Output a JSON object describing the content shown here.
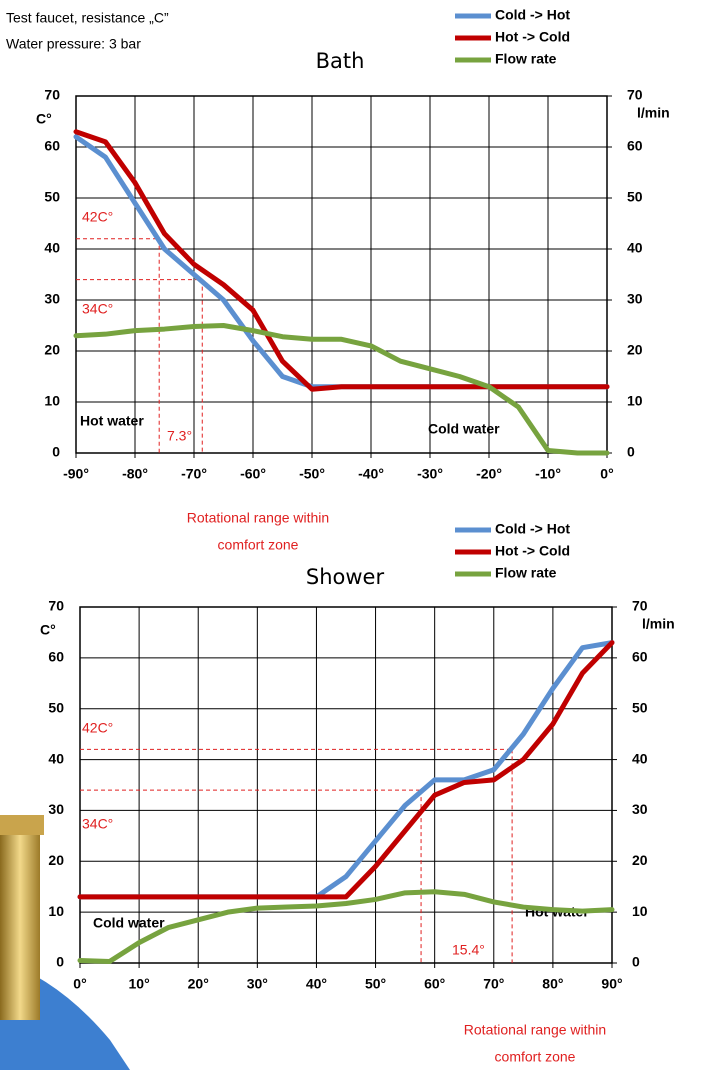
{
  "header": {
    "lines": [
      "Test faucet, resistance „C”",
      "Water pressure: 3 bar"
    ]
  },
  "chart_data": [
    {
      "type": "line",
      "title": "Bath",
      "y_label": "C°",
      "y2_label": "l/min",
      "x": [
        -90,
        -85,
        -80,
        -75,
        -70,
        -65,
        -60,
        -55,
        -50,
        -45,
        -40,
        -35,
        -30,
        -25,
        -20,
        -15,
        -10,
        -5,
        0
      ],
      "series": [
        {
          "name": "Cold -> Hot",
          "color": "#5b8fd0",
          "values": [
            62,
            58,
            49,
            40,
            35,
            30,
            22,
            15,
            13,
            13,
            13,
            13,
            13,
            13,
            13,
            13,
            13,
            13,
            13
          ]
        },
        {
          "name": "Hot -> Cold",
          "color": "#c00000",
          "values": [
            63,
            61,
            53,
            43,
            37,
            33,
            28,
            18,
            12.5,
            13,
            13,
            13,
            13,
            13,
            13,
            13,
            13,
            13,
            13
          ]
        },
        {
          "name": "Flow rate",
          "color": "#77a33f",
          "axis": "y2",
          "values": [
            23,
            23.3,
            24,
            24.3,
            24.8,
            25,
            24,
            22.8,
            22.3,
            22.3,
            21,
            18,
            16.5,
            15,
            13,
            9,
            0.5,
            0,
            0
          ]
        }
      ],
      "xlim": [
        -90,
        0
      ],
      "xticks": [
        {
          "value": -90,
          "label": "-90°"
        },
        {
          "value": -80,
          "label": "-80°"
        },
        {
          "value": -70,
          "label": "-70°"
        },
        {
          "value": -60,
          "label": "-60°"
        },
        {
          "value": -50,
          "label": "-50°"
        },
        {
          "value": -40,
          "label": "-40°"
        },
        {
          "value": -30,
          "label": "-30°"
        },
        {
          "value": -20,
          "label": "-20°"
        },
        {
          "value": -10,
          "label": "-10°"
        },
        {
          "value": 0,
          "label": "0°"
        }
      ],
      "ylim": [
        0,
        70
      ],
      "yticks": [
        0,
        10,
        20,
        30,
        40,
        50,
        60,
        70
      ],
      "y2lim": [
        0,
        70
      ],
      "y2ticks": [
        0,
        10,
        20,
        30,
        40,
        50,
        60,
        70
      ],
      "grid": true,
      "reference_lines": [
        {
          "label": "42C°",
          "y": 42,
          "x": -75.9
        },
        {
          "label": "34C°",
          "y": 34,
          "x": -68.6
        }
      ],
      "range_label": "7.3°",
      "annotations": [
        "Hot water",
        "Cold water"
      ],
      "range_note": [
        "Rotational range within",
        "comfort zone"
      ]
    },
    {
      "type": "line",
      "title": "Shower",
      "y_label": "C°",
      "y2_label": "l/min",
      "x": [
        0,
        5,
        10,
        15,
        20,
        25,
        30,
        35,
        40,
        45,
        50,
        55,
        60,
        65,
        70,
        75,
        80,
        85,
        90
      ],
      "series": [
        {
          "name": "Cold -> Hot",
          "color": "#5b8fd0",
          "values": [
            13,
            13,
            13,
            13,
            13,
            13,
            13,
            13,
            13,
            17,
            24,
            31,
            36,
            36,
            38,
            45,
            54,
            62,
            63
          ]
        },
        {
          "name": "Hot -> Cold",
          "color": "#c00000",
          "values": [
            13,
            13,
            13,
            13,
            13,
            13,
            13,
            13,
            13,
            13,
            19,
            26,
            33,
            35.5,
            36,
            40,
            47,
            57,
            63
          ]
        },
        {
          "name": "Flow rate",
          "color": "#77a33f",
          "axis": "y2",
          "values": [
            0.5,
            0.3,
            4,
            7,
            8.5,
            10,
            10.8,
            11,
            11.2,
            11.7,
            12.5,
            13.8,
            14,
            13.5,
            12,
            11,
            10.5,
            10.2,
            10.5
          ]
        }
      ],
      "xlim": [
        0,
        90
      ],
      "xticks": [
        {
          "value": 0,
          "label": "0°"
        },
        {
          "value": 10,
          "label": "10°"
        },
        {
          "value": 20,
          "label": "20°"
        },
        {
          "value": 30,
          "label": "30°"
        },
        {
          "value": 40,
          "label": "40°"
        },
        {
          "value": 50,
          "label": "50°"
        },
        {
          "value": 60,
          "label": "60°"
        },
        {
          "value": 70,
          "label": "70°"
        },
        {
          "value": 80,
          "label": "80°"
        },
        {
          "value": 90,
          "label": "90°"
        }
      ],
      "ylim": [
        0,
        70
      ],
      "yticks": [
        0,
        10,
        20,
        30,
        40,
        50,
        60,
        70
      ],
      "y2lim": [
        0,
        70
      ],
      "y2ticks": [
        0,
        10,
        20,
        30,
        40,
        50,
        60,
        70
      ],
      "grid": true,
      "reference_lines": [
        {
          "label": "42C°",
          "y": 42,
          "x": 73.1
        },
        {
          "label": "34C°",
          "y": 34,
          "x": 57.7
        }
      ],
      "range_label": "15.4°",
      "annotations": [
        "Cold water",
        "Hot water"
      ],
      "range_note": [
        "Rotational range within",
        "comfort zone"
      ]
    }
  ]
}
